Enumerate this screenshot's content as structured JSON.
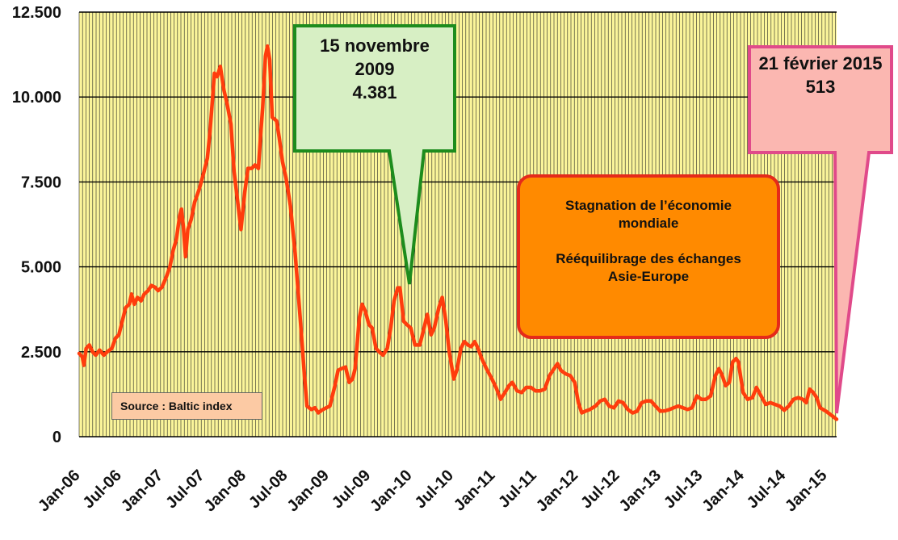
{
  "chart_data": {
    "type": "line",
    "title": "",
    "xlabel": "",
    "ylabel": "",
    "ylim": [
      0,
      12500
    ],
    "y_ticks": [
      "0",
      "2.500",
      "5.000",
      "7.500",
      "10.000",
      "12.500"
    ],
    "y_tick_values": [
      0,
      2500,
      5000,
      7500,
      10000,
      12500
    ],
    "x_ticks": [
      "Jan-06",
      "Jul-06",
      "Jan-07",
      "Jul-07",
      "Jan-08",
      "Jul-08",
      "Jan-09",
      "Jul-09",
      "Jan-10",
      "Jul-10",
      "Jan-11",
      "Jul-11",
      "Jan-12",
      "Jul-12",
      "Jan-13",
      "Jul-13",
      "Jan-14",
      "Jul-14",
      "Jan-15"
    ],
    "x_range": [
      "2006-01-01",
      "2015-02-21"
    ],
    "grid": true,
    "plot_background": "#fbf59a",
    "grid_color": "#222222",
    "series": [
      {
        "color": "#ff3d0d",
        "points": [
          [
            "2006-01-01",
            2450
          ],
          [
            "2006-01-15",
            2350
          ],
          [
            "2006-01-22",
            2100
          ],
          [
            "2006-02-01",
            2600
          ],
          [
            "2006-02-15",
            2700
          ],
          [
            "2006-03-01",
            2500
          ],
          [
            "2006-03-15",
            2400
          ],
          [
            "2006-04-01",
            2550
          ],
          [
            "2006-04-20",
            2400
          ],
          [
            "2006-05-05",
            2500
          ],
          [
            "2006-05-25",
            2600
          ],
          [
            "2006-06-10",
            2900
          ],
          [
            "2006-06-25",
            3000
          ],
          [
            "2006-07-10",
            3400
          ],
          [
            "2006-07-25",
            3800
          ],
          [
            "2006-08-10",
            3900
          ],
          [
            "2006-08-20",
            4200
          ],
          [
            "2006-09-01",
            3900
          ],
          [
            "2006-09-15",
            4100
          ],
          [
            "2006-10-01",
            4000
          ],
          [
            "2006-10-15",
            4200
          ],
          [
            "2006-11-01",
            4300
          ],
          [
            "2006-11-15",
            4450
          ],
          [
            "2006-12-01",
            4400
          ],
          [
            "2006-12-15",
            4300
          ],
          [
            "2007-01-01",
            4400
          ],
          [
            "2007-01-20",
            4700
          ],
          [
            "2007-02-05",
            5000
          ],
          [
            "2007-02-20",
            5500
          ],
          [
            "2007-03-05",
            5800
          ],
          [
            "2007-03-20",
            6500
          ],
          [
            "2007-03-28",
            6700
          ],
          [
            "2007-04-05",
            6200
          ],
          [
            "2007-04-15",
            5300
          ],
          [
            "2007-04-25",
            6100
          ],
          [
            "2007-05-10",
            6400
          ],
          [
            "2007-05-25",
            6900
          ],
          [
            "2007-06-15",
            7300
          ],
          [
            "2007-07-05",
            7800
          ],
          [
            "2007-07-20",
            8200
          ],
          [
            "2007-08-01",
            9000
          ],
          [
            "2007-08-10",
            9800
          ],
          [
            "2007-08-20",
            10700
          ],
          [
            "2007-09-01",
            10600
          ],
          [
            "2007-09-15",
            10900
          ],
          [
            "2007-10-01",
            10200
          ],
          [
            "2007-10-15",
            9800
          ],
          [
            "2007-11-01",
            9200
          ],
          [
            "2007-11-15",
            7800
          ],
          [
            "2007-12-01",
            6900
          ],
          [
            "2007-12-15",
            6100
          ],
          [
            "2008-01-01",
            7200
          ],
          [
            "2008-01-15",
            7900
          ],
          [
            "2008-02-01",
            7900
          ],
          [
            "2008-02-15",
            8000
          ],
          [
            "2008-03-01",
            7900
          ],
          [
            "2008-03-10",
            8800
          ],
          [
            "2008-03-20",
            9700
          ],
          [
            "2008-04-01",
            11200
          ],
          [
            "2008-04-10",
            11500
          ],
          [
            "2008-04-20",
            11100
          ],
          [
            "2008-05-01",
            9400
          ],
          [
            "2008-05-20",
            9300
          ],
          [
            "2008-06-01",
            8800
          ],
          [
            "2008-06-15",
            8100
          ],
          [
            "2008-07-01",
            7600
          ],
          [
            "2008-07-20",
            6800
          ],
          [
            "2008-08-10",
            5400
          ],
          [
            "2008-09-01",
            3500
          ],
          [
            "2008-09-20",
            1800
          ],
          [
            "2008-10-01",
            900
          ],
          [
            "2008-10-20",
            800
          ],
          [
            "2008-11-05",
            850
          ],
          [
            "2008-11-20",
            700
          ],
          [
            "2008-12-05",
            780
          ],
          [
            "2008-12-25",
            850
          ],
          [
            "2009-01-10",
            900
          ],
          [
            "2009-02-01",
            1500
          ],
          [
            "2009-02-15",
            1950
          ],
          [
            "2009-03-01",
            2000
          ],
          [
            "2009-03-20",
            2050
          ],
          [
            "2009-04-05",
            1600
          ],
          [
            "2009-04-20",
            1700
          ],
          [
            "2009-05-01",
            2000
          ],
          [
            "2009-05-20",
            3500
          ],
          [
            "2009-06-01",
            3900
          ],
          [
            "2009-06-15",
            3700
          ],
          [
            "2009-07-01",
            3300
          ],
          [
            "2009-07-15",
            3200
          ],
          [
            "2009-08-01",
            2600
          ],
          [
            "2009-08-15",
            2500
          ],
          [
            "2009-09-01",
            2400
          ],
          [
            "2009-09-20",
            2600
          ],
          [
            "2009-10-05",
            3200
          ],
          [
            "2009-10-20",
            4000
          ],
          [
            "2009-11-05",
            4381
          ],
          [
            "2009-11-15",
            4381
          ],
          [
            "2009-12-01",
            3400
          ],
          [
            "2009-12-15",
            3300
          ],
          [
            "2010-01-01",
            3200
          ],
          [
            "2010-01-20",
            2700
          ],
          [
            "2010-02-10",
            2700
          ],
          [
            "2010-03-01",
            3200
          ],
          [
            "2010-03-15",
            3600
          ],
          [
            "2010-04-01",
            3000
          ],
          [
            "2010-04-15",
            3200
          ],
          [
            "2010-05-05",
            3800
          ],
          [
            "2010-05-20",
            4100
          ],
          [
            "2010-06-05",
            3400
          ],
          [
            "2010-06-20",
            2500
          ],
          [
            "2010-07-10",
            1700
          ],
          [
            "2010-07-25",
            2000
          ],
          [
            "2010-08-10",
            2600
          ],
          [
            "2010-08-25",
            2800
          ],
          [
            "2010-09-10",
            2700
          ],
          [
            "2010-09-25",
            2650
          ],
          [
            "2010-10-10",
            2800
          ],
          [
            "2010-10-25",
            2600
          ],
          [
            "2010-11-10",
            2300
          ],
          [
            "2010-12-01",
            2000
          ],
          [
            "2010-12-25",
            1700
          ],
          [
            "2011-01-15",
            1400
          ],
          [
            "2011-02-01",
            1100
          ],
          [
            "2011-02-20",
            1300
          ],
          [
            "2011-03-10",
            1500
          ],
          [
            "2011-03-25",
            1600
          ],
          [
            "2011-04-15",
            1350
          ],
          [
            "2011-05-05",
            1300
          ],
          [
            "2011-05-25",
            1450
          ],
          [
            "2011-06-15",
            1450
          ],
          [
            "2011-07-05",
            1350
          ],
          [
            "2011-07-25",
            1350
          ],
          [
            "2011-08-15",
            1400
          ],
          [
            "2011-09-05",
            1800
          ],
          [
            "2011-09-25",
            2000
          ],
          [
            "2011-10-10",
            2150
          ],
          [
            "2011-10-25",
            1950
          ],
          [
            "2011-11-15",
            1850
          ],
          [
            "2011-12-05",
            1800
          ],
          [
            "2011-12-25",
            1600
          ],
          [
            "2012-01-10",
            1000
          ],
          [
            "2012-01-25",
            700
          ],
          [
            "2012-02-10",
            750
          ],
          [
            "2012-03-01",
            800
          ],
          [
            "2012-03-25",
            900
          ],
          [
            "2012-04-15",
            1050
          ],
          [
            "2012-05-05",
            1100
          ],
          [
            "2012-05-25",
            900
          ],
          [
            "2012-06-15",
            850
          ],
          [
            "2012-07-05",
            1050
          ],
          [
            "2012-07-25",
            1000
          ],
          [
            "2012-08-15",
            800
          ],
          [
            "2012-09-05",
            700
          ],
          [
            "2012-09-25",
            750
          ],
          [
            "2012-10-15",
            1000
          ],
          [
            "2012-11-05",
            1050
          ],
          [
            "2012-11-25",
            1050
          ],
          [
            "2012-12-15",
            900
          ],
          [
            "2013-01-05",
            750
          ],
          [
            "2013-01-25",
            760
          ],
          [
            "2013-02-15",
            800
          ],
          [
            "2013-03-05",
            850
          ],
          [
            "2013-03-25",
            900
          ],
          [
            "2013-04-15",
            850
          ],
          [
            "2013-05-05",
            800
          ],
          [
            "2013-05-25",
            850
          ],
          [
            "2013-06-15",
            1200
          ],
          [
            "2013-07-05",
            1100
          ],
          [
            "2013-07-25",
            1100
          ],
          [
            "2013-08-15",
            1200
          ],
          [
            "2013-09-05",
            1800
          ],
          [
            "2013-09-20",
            2000
          ],
          [
            "2013-10-05",
            1800
          ],
          [
            "2013-10-20",
            1500
          ],
          [
            "2013-11-05",
            1600
          ],
          [
            "2013-11-20",
            2200
          ],
          [
            "2013-12-05",
            2300
          ],
          [
            "2013-12-15",
            2200
          ],
          [
            "2014-01-05",
            1300
          ],
          [
            "2014-01-25",
            1100
          ],
          [
            "2014-02-15",
            1150
          ],
          [
            "2014-03-05",
            1450
          ],
          [
            "2014-03-25",
            1200
          ],
          [
            "2014-04-15",
            950
          ],
          [
            "2014-05-05",
            1000
          ],
          [
            "2014-05-25",
            950
          ],
          [
            "2014-06-15",
            900
          ],
          [
            "2014-07-05",
            780
          ],
          [
            "2014-07-25",
            900
          ],
          [
            "2014-08-15",
            1100
          ],
          [
            "2014-09-05",
            1150
          ],
          [
            "2014-09-25",
            1100
          ],
          [
            "2014-10-10",
            1000
          ],
          [
            "2014-10-25",
            1400
          ],
          [
            "2014-11-10",
            1300
          ],
          [
            "2014-11-25",
            1150
          ],
          [
            "2014-12-10",
            850
          ],
          [
            "2015-01-05",
            750
          ],
          [
            "2015-01-25",
            650
          ],
          [
            "2015-02-21",
            513
          ]
        ]
      }
    ]
  },
  "annotations": {
    "callout_1": {
      "line1": "15 novembre",
      "line2": "2009",
      "line3": "4.381",
      "fill": "#d7efc4",
      "border": "#1d8c1d"
    },
    "callout_2": {
      "line1": "21 février 2015",
      "line2": "513",
      "fill": "#fbb7b1",
      "border": "#e04a8a"
    },
    "note": {
      "line1": "Stagnation de l’économie",
      "line2": "mondiale",
      "line3": "Rééquilibrage des échanges",
      "line4": "Asie-Europe",
      "fill": "#ff8a00",
      "border": "#e52a1a"
    },
    "source": {
      "text": "Source : Baltic index",
      "fill": "#fccaa4"
    }
  }
}
